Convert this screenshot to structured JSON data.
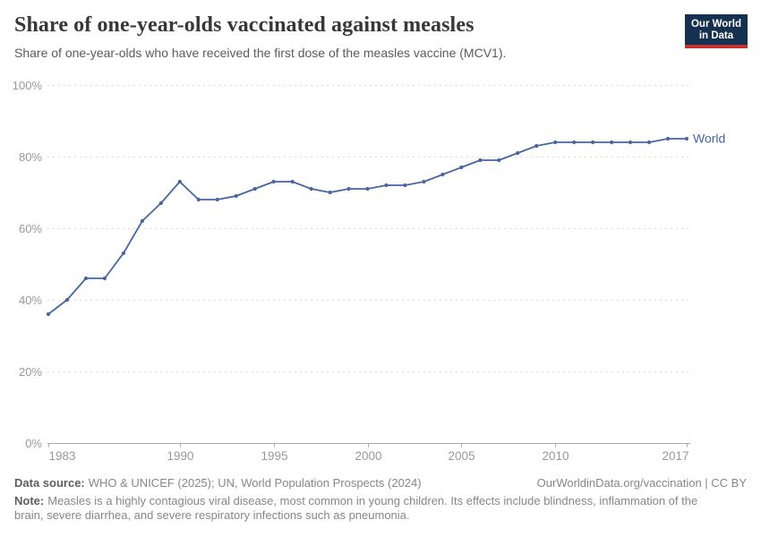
{
  "header": {
    "title": "Share of one-year-olds vaccinated against measles",
    "subtitle": "Share of one-year-olds who have received the first dose of the measles vaccine (MCV1).",
    "logo": {
      "line1": "Our World",
      "line2": "in Data"
    }
  },
  "chart_data": {
    "type": "line",
    "title": "Share of one-year-olds vaccinated against measles",
    "xlabel": "",
    "ylabel": "",
    "xlim": [
      1983,
      2017
    ],
    "ylim": [
      0,
      100
    ],
    "x_ticks": [
      1983,
      1990,
      1995,
      2000,
      2005,
      2010,
      2017
    ],
    "y_ticks": [
      0,
      20,
      40,
      60,
      80,
      100
    ],
    "y_tick_suffix": "%",
    "grid": "horizontal-dashed",
    "legend_position": "end-of-line",
    "series": [
      {
        "name": "World",
        "x": [
          1983,
          1984,
          1985,
          1986,
          1987,
          1988,
          1989,
          1990,
          1991,
          1992,
          1993,
          1994,
          1995,
          1996,
          1997,
          1998,
          1999,
          2000,
          2001,
          2002,
          2003,
          2004,
          2005,
          2006,
          2007,
          2008,
          2009,
          2010,
          2011,
          2012,
          2013,
          2014,
          2015,
          2016,
          2017
        ],
        "values": [
          36,
          40,
          46,
          46,
          53,
          62,
          67,
          73,
          68,
          68,
          69,
          71,
          73,
          73,
          71,
          70,
          71,
          71,
          72,
          72,
          73,
          75,
          77,
          79,
          79,
          81,
          83,
          84,
          84,
          84,
          84,
          84,
          84,
          85,
          85
        ]
      }
    ]
  },
  "footer": {
    "data_source_label": "Data source:",
    "data_source": "WHO & UNICEF (2025); UN, World Population Prospects (2024)",
    "link": "OurWorldinData.org/vaccination | CC BY",
    "note_label": "Note:",
    "note": "Measles is a highly contagious viral disease, most common in young children. Its effects include blindness, inflammation of the brain, severe diarrhea, and severe respiratory infections such as pneumonia."
  },
  "colors": {
    "line": "#4766A3",
    "grid": "#dddddd",
    "axis": "#a8a8a8",
    "tick_label": "#999999",
    "title": "#373737",
    "subtitle": "#5b5b5b",
    "footer_text": "#878787",
    "footer_bold": "#5e5e5e",
    "logo_bg": "#16304f",
    "logo_red": "#c0312f"
  }
}
